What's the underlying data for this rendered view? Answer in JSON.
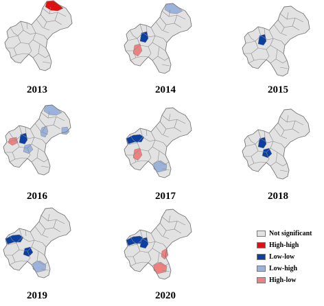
{
  "panels": [
    {
      "year": "2013",
      "regions": {
        "high_high": [
          "northeast-tip"
        ]
      }
    },
    {
      "year": "2014",
      "regions": {
        "low_high": [
          "northeast-tip"
        ],
        "low_low": [
          "west-central"
        ],
        "high_low": [
          "west-southwest"
        ]
      }
    },
    {
      "year": "2015",
      "regions": {
        "low_low": [
          "west-central"
        ]
      }
    },
    {
      "year": "2016",
      "regions": {
        "low_high": [
          "northeast-tip",
          "northeast-mid",
          "northeast-east",
          "west-south"
        ],
        "high_low": [
          "west-west"
        ],
        "low_low": [
          "west-central"
        ]
      }
    },
    {
      "year": "2017",
      "regions": {
        "low_low": [
          "northwest"
        ],
        "high_low": [
          "west-southwest"
        ],
        "low_high": [
          "southeast"
        ]
      }
    },
    {
      "year": "2018",
      "regions": {
        "low_low": [
          "west-central",
          "west-south"
        ]
      }
    },
    {
      "year": "2019",
      "regions": {
        "low_low": [
          "northwest",
          "west-south"
        ],
        "low_high": [
          "southeast"
        ]
      }
    },
    {
      "year": "2020",
      "regions": {
        "low_low": [
          "northwest",
          "west-central"
        ],
        "high_low": [
          "east-central",
          "southeast"
        ]
      }
    }
  ],
  "legend": [
    {
      "key": "not_significant",
      "label": "Not significant",
      "color": "#e2e2e2"
    },
    {
      "key": "high_high",
      "label": "High-high",
      "color": "#dd1111"
    },
    {
      "key": "low_low",
      "label": "Low-low",
      "color": "#0b3fa0"
    },
    {
      "key": "low_high",
      "label": "Low-high",
      "color": "#9bb3da"
    },
    {
      "key": "high_low",
      "label": "High-low",
      "color": "#ee8080"
    }
  ],
  "colors": {
    "base": "#e2e2e2",
    "border": "#8a8a8a"
  }
}
